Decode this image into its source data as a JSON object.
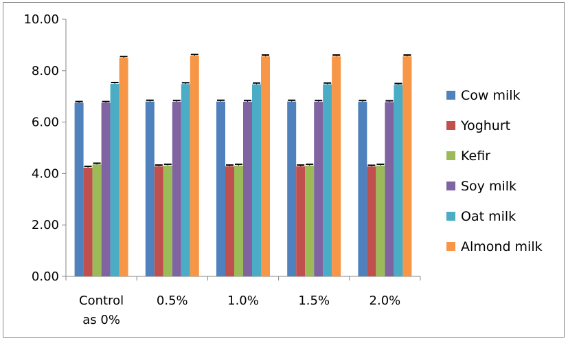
{
  "chart_data": {
    "type": "bar",
    "title": "",
    "xlabel": "",
    "ylabel": "",
    "categories": [
      [
        "Control",
        "as 0%"
      ],
      [
        "0.5%"
      ],
      [
        "1.0%"
      ],
      [
        "1.5%"
      ],
      [
        "2.0%"
      ]
    ],
    "ylim": [
      0,
      10
    ],
    "yticks": [
      "0.00",
      "2.00",
      "4.00",
      "6.00",
      "8.00",
      "10.00"
    ],
    "grid": false,
    "legend": "right",
    "error_bars": true,
    "series": [
      {
        "name": "Cow milk",
        "color": "#4F81BD",
        "values": [
          6.75,
          6.8,
          6.8,
          6.8,
          6.79
        ]
      },
      {
        "name": "Yoghurt",
        "color": "#C0504D",
        "values": [
          4.23,
          4.28,
          4.28,
          4.28,
          4.27
        ]
      },
      {
        "name": "Kefir",
        "color": "#9BBB59",
        "values": [
          4.35,
          4.31,
          4.31,
          4.31,
          4.31
        ]
      },
      {
        "name": "Soy milk",
        "color": "#8064A2",
        "values": [
          6.75,
          6.79,
          6.79,
          6.79,
          6.78
        ]
      },
      {
        "name": "Oat milk",
        "color": "#4BACC6",
        "values": [
          7.49,
          7.48,
          7.47,
          7.47,
          7.45
        ]
      },
      {
        "name": "Almond milk",
        "color": "#F79646",
        "values": [
          8.5,
          8.58,
          8.56,
          8.56,
          8.56
        ]
      }
    ],
    "error": 0.05
  }
}
